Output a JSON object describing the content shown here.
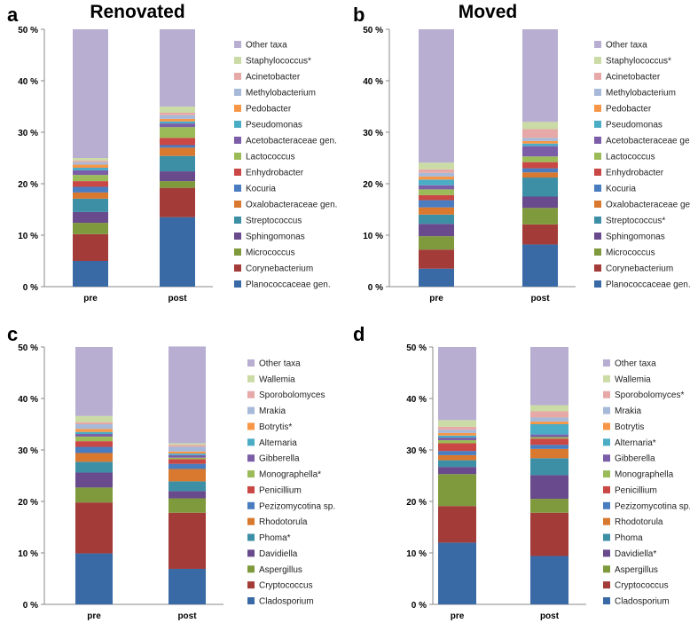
{
  "colors": {
    "Planococcaceae gen.": "#3a6aa6",
    "Corynebacterium": "#a33b38",
    "Micrococcus": "#7f9a3c",
    "Sphingomonas": "#694a8c",
    "Streptococcus": "#3d8fa6",
    "Oxalobacteraceae gen.": "#d9782f",
    "Kocuria": "#4a7cc0",
    "Enhydrobacter": "#c94845",
    "Lactococcus": "#9bbb59",
    "Acetobacteraceae gen.": "#7b5ea7",
    "Pseudomonas": "#4bacc6",
    "Pedobacter": "#f79646",
    "Methylobacterium": "#a6b9d9",
    "Acinetobacter": "#e6a9a7",
    "Staphylococcus": "#cbdba6",
    "Other taxa": "#b8aed2",
    "Cladosporium": "#3a6aa6",
    "Cryptococcus": "#a33b38",
    "Aspergillus": "#7f9a3c",
    "Davidiella": "#694a8c",
    "Phoma": "#3d8fa6",
    "Rhodotorula": "#d9782f",
    "Pezizomycotina sp.": "#4a7cc0",
    "Penicillium": "#c94845",
    "Monographella": "#9bbb59",
    "Gibberella": "#7b5ea7",
    "Alternaria": "#4bacc6",
    "Botrytis": "#f79646",
    "Mrakia": "#a6b9d9",
    "Sporobolomyces": "#e6a9a7",
    "Wallemia": "#cbdba6"
  },
  "chart_data": [
    {
      "type": "bar",
      "stacked": true,
      "panel_label": "a",
      "title": "Renovated",
      "categories": [
        "pre",
        "post"
      ],
      "yticks": [
        "0 %",
        "10 %",
        "20 %",
        "30 %",
        "40 %",
        "50 %"
      ],
      "ylim": [
        0,
        50
      ],
      "legend_position": "right",
      "series": [
        {
          "name": "Planococcaceae gen.",
          "key": "Planococcaceae gen.",
          "values": [
            5.0,
            13.5
          ]
        },
        {
          "name": "Corynebacterium",
          "key": "Corynebacterium",
          "values": [
            5.2,
            5.7
          ]
        },
        {
          "name": "Micrococcus",
          "key": "Micrococcus",
          "values": [
            2.2,
            1.3
          ]
        },
        {
          "name": "Sphingomonas",
          "key": "Sphingomonas",
          "values": [
            2.1,
            1.9
          ]
        },
        {
          "name": "Streptococcus",
          "key": "Streptococcus",
          "values": [
            2.6,
            3.0
          ]
        },
        {
          "name": "Oxalobacteraceae gen.",
          "key": "Oxalobacteraceae gen.",
          "values": [
            1.2,
            1.6
          ]
        },
        {
          "name": "Kocuria",
          "key": "Kocuria",
          "values": [
            1.1,
            0.5
          ]
        },
        {
          "name": "Enhydrobacter",
          "key": "Enhydrobacter",
          "values": [
            1.1,
            1.4
          ]
        },
        {
          "name": "Lactococcus",
          "key": "Lactococcus",
          "values": [
            1.2,
            2.1
          ]
        },
        {
          "name": "Acetobacteraceae gen.",
          "key": "Acetobacteraceae gen.",
          "values": [
            0.9,
            0.7
          ]
        },
        {
          "name": "Pseudomonas",
          "key": "Pseudomonas",
          "values": [
            0.5,
            0.4
          ]
        },
        {
          "name": "Pedobacter",
          "key": "Pedobacter",
          "values": [
            0.6,
            0.5
          ]
        },
        {
          "name": "Methylobacterium",
          "key": "Methylobacterium",
          "values": [
            0.5,
            0.7
          ]
        },
        {
          "name": "Acinetobacter",
          "key": "Acinetobacter",
          "values": [
            0.3,
            0.5
          ]
        },
        {
          "name": "Staphylococcus*",
          "key": "Staphylococcus",
          "values": [
            0.5,
            1.2
          ]
        },
        {
          "name": "Other taxa",
          "key": "Other taxa",
          "values": [
            25.0,
            15.0
          ]
        }
      ]
    },
    {
      "type": "bar",
      "stacked": true,
      "panel_label": "b",
      "title": "Moved",
      "categories": [
        "pre",
        "post"
      ],
      "yticks": [
        "0 %",
        "10 %",
        "20 %",
        "30 %",
        "40 %",
        "50 %"
      ],
      "ylim": [
        0,
        50
      ],
      "legend_position": "right",
      "series": [
        {
          "name": "Planococcaceae gen.*",
          "key": "Planococcaceae gen.",
          "values": [
            3.5,
            8.2
          ]
        },
        {
          "name": "Corynebacterium",
          "key": "Corynebacterium",
          "values": [
            3.7,
            3.9
          ]
        },
        {
          "name": "Micrococcus",
          "key": "Micrococcus",
          "values": [
            2.6,
            3.2
          ]
        },
        {
          "name": "Sphingomonas",
          "key": "Sphingomonas",
          "values": [
            2.4,
            2.2
          ]
        },
        {
          "name": "Streptococcus*",
          "key": "Streptococcus",
          "values": [
            1.8,
            3.7
          ]
        },
        {
          "name": "Oxalobacteraceae gen.",
          "key": "Oxalobacteraceae gen.",
          "values": [
            1.4,
            1.0
          ]
        },
        {
          "name": "Kocuria",
          "key": "Kocuria",
          "values": [
            1.4,
            0.8
          ]
        },
        {
          "name": "Enhydrobacter",
          "key": "Enhydrobacter",
          "values": [
            1.0,
            1.2
          ]
        },
        {
          "name": "Lactococcus",
          "key": "Lactococcus",
          "values": [
            1.1,
            1.1
          ]
        },
        {
          "name": "Acetobacteraceae gen.",
          "key": "Acetobacteraceae gen.",
          "values": [
            0.8,
            2.0
          ]
        },
        {
          "name": "Pseudomonas",
          "key": "Pseudomonas",
          "values": [
            1.1,
            0.5
          ]
        },
        {
          "name": "Pedobacter",
          "key": "Pedobacter",
          "values": [
            0.6,
            0.5
          ]
        },
        {
          "name": "Methylobacterium",
          "key": "Methylobacterium",
          "values": [
            0.7,
            0.6
          ]
        },
        {
          "name": "Acinetobacter",
          "key": "Acinetobacter",
          "values": [
            0.7,
            1.7
          ]
        },
        {
          "name": "Staphylococcus*",
          "key": "Staphylococcus",
          "values": [
            1.3,
            1.4
          ]
        },
        {
          "name": "Other taxa",
          "key": "Other taxa",
          "values": [
            25.9,
            18.0
          ]
        }
      ]
    },
    {
      "type": "bar",
      "stacked": true,
      "panel_label": "c",
      "title": "",
      "categories": [
        "pre",
        "post"
      ],
      "yticks": [
        "0 %",
        "10 %",
        "20 %",
        "30 %",
        "40 %",
        "50 %"
      ],
      "ylim": [
        0,
        50
      ],
      "legend_position": "right",
      "series": [
        {
          "name": "Cladosporium",
          "key": "Cladosporium",
          "values": [
            9.9,
            6.9
          ]
        },
        {
          "name": "Cryptococcus",
          "key": "Cryptococcus",
          "values": [
            9.9,
            10.9
          ]
        },
        {
          "name": "Aspergillus",
          "key": "Aspergillus",
          "values": [
            2.9,
            2.8
          ]
        },
        {
          "name": "Davidiella",
          "key": "Davidiella",
          "values": [
            2.9,
            1.4
          ]
        },
        {
          "name": "Phoma*",
          "key": "Phoma",
          "values": [
            2.1,
            1.9
          ]
        },
        {
          "name": "Rhodotorula",
          "key": "Rhodotorula",
          "values": [
            1.7,
            2.4
          ]
        },
        {
          "name": "Pezizomycotina sp.",
          "key": "Pezizomycotina sp.",
          "values": [
            1.2,
            1.0
          ]
        },
        {
          "name": "Penicillium",
          "key": "Penicillium",
          "values": [
            1.1,
            0.9
          ]
        },
        {
          "name": "Monographella*",
          "key": "Monographella",
          "values": [
            0.9,
            0.3
          ]
        },
        {
          "name": "Gibberella",
          "key": "Gibberella",
          "values": [
            0.5,
            0.5
          ]
        },
        {
          "name": "Alternaria",
          "key": "Alternaria",
          "values": [
            0.4,
            0.3
          ]
        },
        {
          "name": "Botrytis*",
          "key": "Botrytis",
          "values": [
            0.6,
            0.4
          ]
        },
        {
          "name": "Mrakia",
          "key": "Mrakia",
          "values": [
            0.9,
            0.9
          ]
        },
        {
          "name": "Sporobolomyces",
          "key": "Sporobolomyces",
          "values": [
            0.4,
            0.4
          ]
        },
        {
          "name": "Wallemia",
          "key": "Wallemia",
          "values": [
            1.2,
            0.3
          ]
        },
        {
          "name": "Other taxa",
          "key": "Other taxa",
          "values": [
            13.4,
            18.8
          ]
        }
      ]
    },
    {
      "type": "bar",
      "stacked": true,
      "panel_label": "d",
      "title": "",
      "categories": [
        "pre",
        "post"
      ],
      "yticks": [
        "0 %",
        "10 %",
        "20 %",
        "30 %",
        "40 %",
        "50 %"
      ],
      "ylim": [
        0,
        50
      ],
      "legend_position": "right",
      "series": [
        {
          "name": "Cladosporium",
          "key": "Cladosporium",
          "values": [
            12.0,
            9.4
          ]
        },
        {
          "name": "Cryptococcus",
          "key": "Cryptococcus",
          "values": [
            7.1,
            8.4
          ]
        },
        {
          "name": "Aspergillus",
          "key": "Aspergillus",
          "values": [
            6.2,
            2.7
          ]
        },
        {
          "name": "Davidiella*",
          "key": "Davidiella",
          "values": [
            1.4,
            4.6
          ]
        },
        {
          "name": "Phoma",
          "key": "Phoma",
          "values": [
            1.3,
            3.3
          ]
        },
        {
          "name": "Rhodotorula",
          "key": "Rhodotorula",
          "values": [
            1.0,
            1.8
          ]
        },
        {
          "name": "Pezizomycotina sp.",
          "key": "Pezizomycotina sp.",
          "values": [
            0.8,
            0.8
          ]
        },
        {
          "name": "Penicillium",
          "key": "Penicillium",
          "values": [
            1.5,
            1.2
          ]
        },
        {
          "name": "Monographella",
          "key": "Monographella",
          "values": [
            0.6,
            0.3
          ]
        },
        {
          "name": "Gibberella",
          "key": "Gibberella",
          "values": [
            0.5,
            0.5
          ]
        },
        {
          "name": "Alternaria*",
          "key": "Alternaria",
          "values": [
            0.4,
            2.0
          ]
        },
        {
          "name": "Botrytis",
          "key": "Botrytis",
          "values": [
            0.5,
            0.5
          ]
        },
        {
          "name": "Mrakia",
          "key": "Mrakia",
          "values": [
            0.6,
            0.8
          ]
        },
        {
          "name": "Sporobolomyces*",
          "key": "Sporobolomyces",
          "values": [
            0.6,
            1.2
          ]
        },
        {
          "name": "Wallemia",
          "key": "Wallemia",
          "values": [
            1.3,
            1.2
          ]
        },
        {
          "name": "Other taxa",
          "key": "Other taxa",
          "values": [
            14.2,
            11.3
          ]
        }
      ]
    }
  ]
}
